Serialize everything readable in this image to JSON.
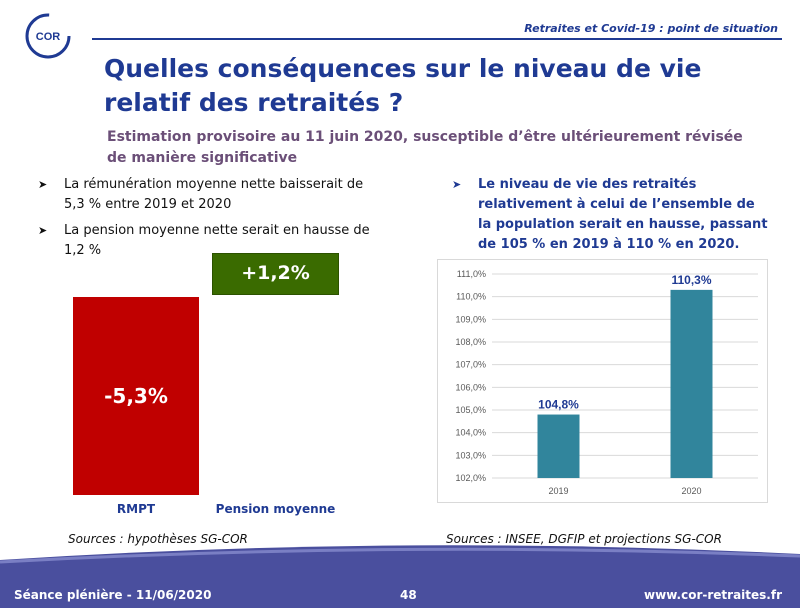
{
  "header": {
    "logo_text": "COR",
    "title": "Retraites et Covid-19 : point de situation"
  },
  "title": "Quelles conséquences sur le niveau de vie relatif des retraités ?",
  "subtitle": "Estimation provisoire au 11 juin 2020, susceptible d’être ultérieurement révisée de manière significative",
  "bullets_left": [
    {
      "text": "La rémunération moyenne nette baisserait de 5,3 % entre 2019 et 2020"
    },
    {
      "text": "La pension moyenne nette serait en hausse de 1,2 %"
    }
  ],
  "bullet_right": {
    "text": "Le niveau de vie des retraités relativement à celui de l’ensemble de la population serait en hausse, passant de 105 % en 2019 à 110 % en 2020."
  },
  "left_chart": {
    "bars": [
      {
        "category": "RMPT",
        "label": "-5,3%",
        "color": "#c00000"
      },
      {
        "category": "Pension moyenne",
        "label": "+1,2%",
        "color": "#3a6b00"
      }
    ]
  },
  "chart_data": {
    "type": "bar",
    "categories": [
      "2019",
      "2020"
    ],
    "values": [
      104.8,
      110.3
    ],
    "data_labels": [
      "104,8%",
      "110,3%"
    ],
    "yticks": [
      "102,0%",
      "103,0%",
      "104,0%",
      "105,0%",
      "106,0%",
      "107,0%",
      "108,0%",
      "109,0%",
      "110,0%",
      "111,0%"
    ],
    "ylim": [
      102,
      111
    ],
    "title": "",
    "xlabel": "",
    "ylabel": "",
    "color": "#31859c",
    "grid": true
  },
  "sources": {
    "left": "Sources : hypothèses SG-COR",
    "right": "Sources : INSEE, DGFIP et projections SG-COR"
  },
  "footer": {
    "left": "Séance plénière - 11/06/2020",
    "page": "48",
    "right": "www.cor-retraites.fr"
  },
  "icons": {
    "bullet": "arrow-bullet-icon"
  },
  "colors": {
    "brand_blue": "#1f3a93",
    "footer_band": "#4a4f9e",
    "accent_purple": "#6b4f78"
  }
}
